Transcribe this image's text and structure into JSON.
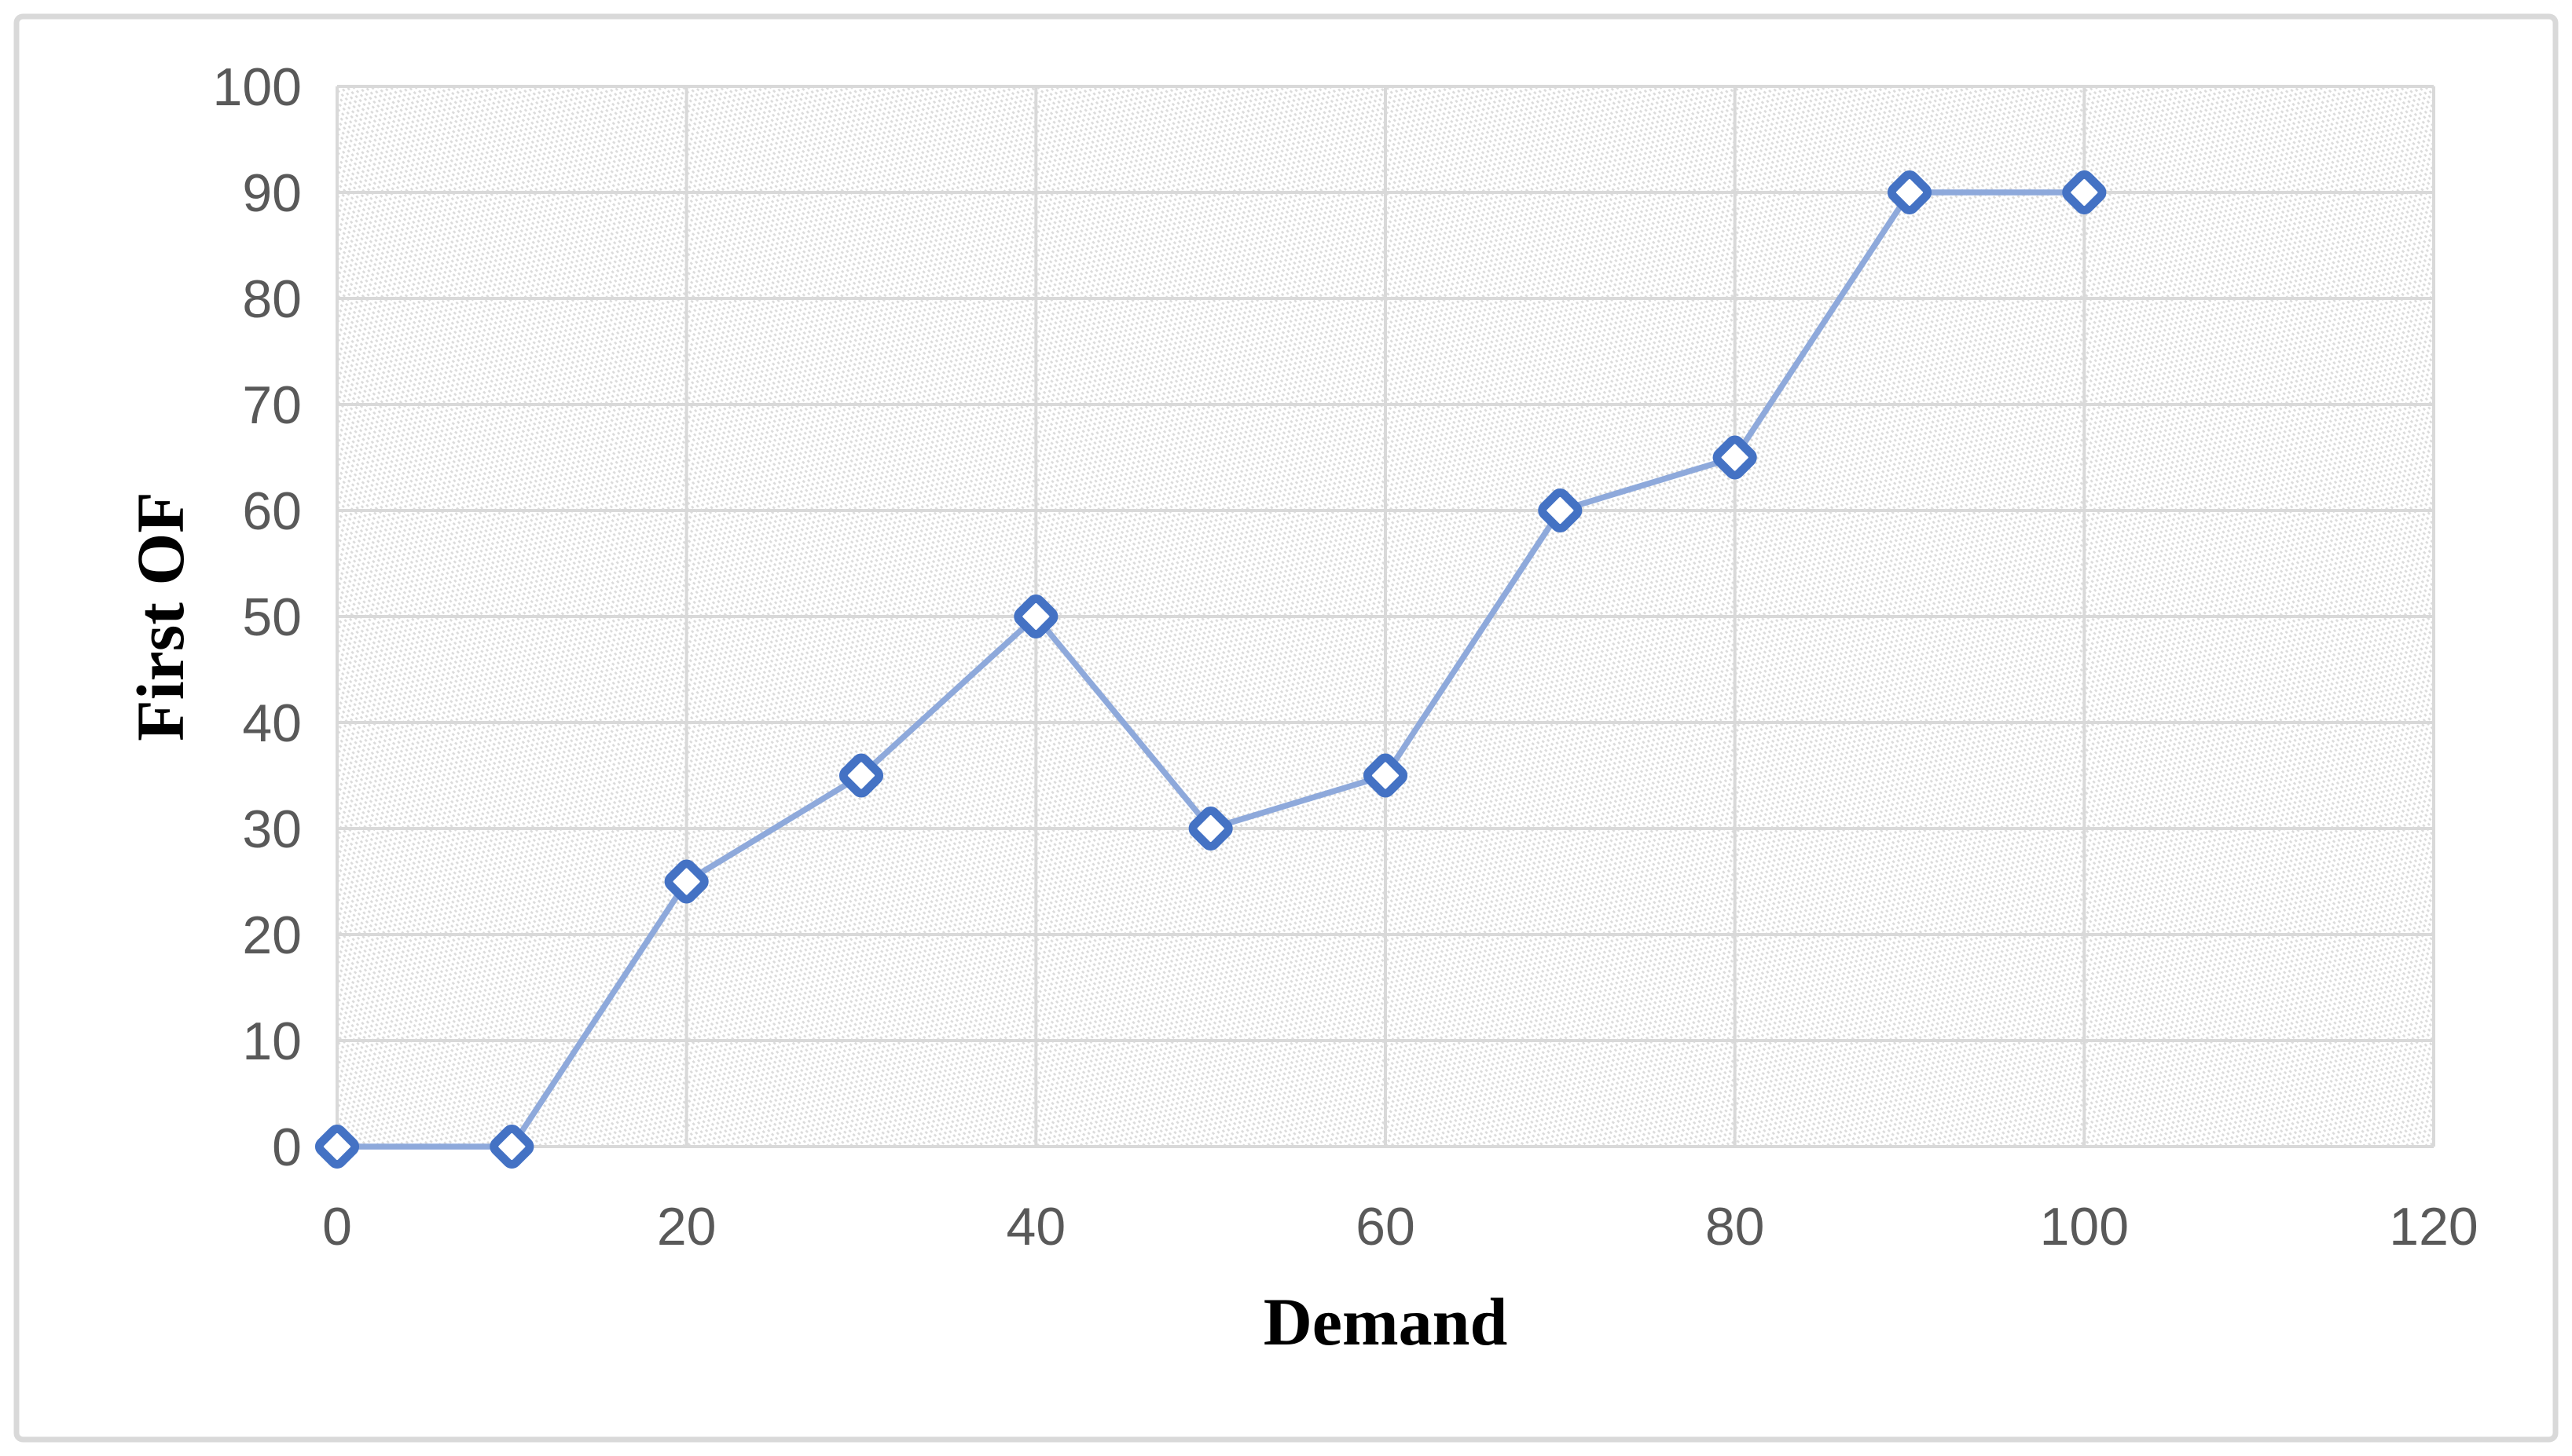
{
  "chart_data": {
    "type": "line",
    "title": "",
    "xlabel": "Demand",
    "ylabel": "First OF",
    "x": [
      0,
      10,
      20,
      30,
      40,
      50,
      60,
      70,
      80,
      90,
      100
    ],
    "values": [
      0,
      0,
      25,
      35,
      50,
      30,
      35,
      60,
      65,
      90,
      90
    ],
    "series": [
      {
        "name": "First OF",
        "values": [
          0,
          0,
          25,
          35,
          50,
          30,
          35,
          60,
          65,
          90,
          90
        ]
      }
    ],
    "xlim": [
      0,
      120
    ],
    "ylim": [
      0,
      100
    ],
    "x_ticks": [
      "0",
      "20",
      "40",
      "60",
      "80",
      "100",
      "120"
    ],
    "y_ticks": [
      "0",
      "10",
      "20",
      "30",
      "40",
      "50",
      "60",
      "70",
      "80",
      "90",
      "100"
    ],
    "x_tick_values": [
      0,
      20,
      40,
      60,
      80,
      100,
      120
    ],
    "y_tick_values": [
      0,
      10,
      20,
      30,
      40,
      50,
      60,
      70,
      80,
      90,
      100
    ],
    "grid": true,
    "legend_position": "none",
    "marker_shape": "diamond",
    "plot_background": "diagonal-hatch",
    "colors": {
      "line": "#8EA9DB",
      "marker_stroke": "#4472C4",
      "marker_fill": "#FFFFFF",
      "gridline": "#D9D9D9",
      "hatch": "#D9D9D9",
      "tick_label": "#595959",
      "axis_title": "#000000",
      "outer_border": "#D9D9D9",
      "background": "#FFFFFF"
    }
  }
}
